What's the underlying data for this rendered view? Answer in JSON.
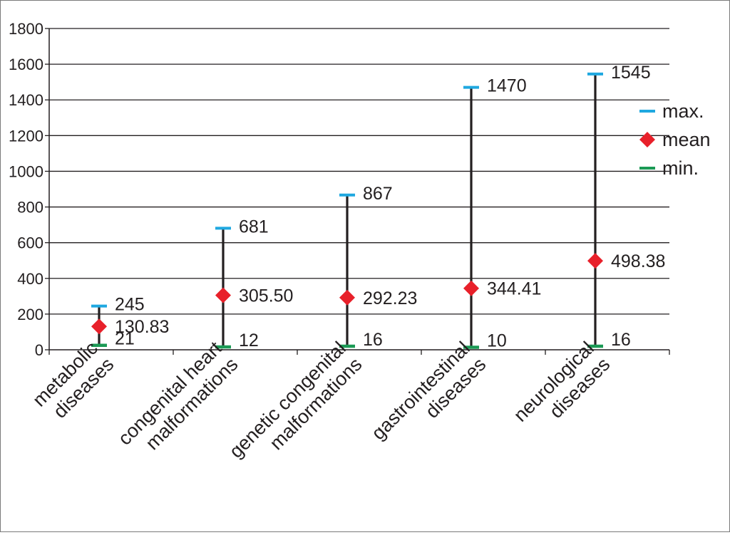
{
  "chart_data": {
    "type": "range-dot",
    "categories": [
      [
        "metabolic",
        "diseases"
      ],
      [
        "congenital heart",
        "malformations"
      ],
      [
        "genetic congenital",
        "malformations"
      ],
      [
        "gastrointestinal",
        "diseases"
      ],
      [
        "neurological",
        "diseases"
      ]
    ],
    "series": [
      {
        "name": "max.",
        "values": [
          245,
          681,
          867,
          1470,
          1545
        ],
        "color": "#1fa8e0",
        "marker": "dash"
      },
      {
        "name": "mean",
        "values": [
          130.83,
          305.5,
          292.23,
          344.41,
          498.38
        ],
        "labels": [
          "130.83",
          "305.50",
          "292.23",
          "344.41",
          "498.38"
        ],
        "color": "#e8202a",
        "marker": "diamond"
      },
      {
        "name": "min.",
        "values": [
          21,
          12,
          16,
          10,
          16
        ],
        "color": "#1b9a55",
        "marker": "dash"
      }
    ],
    "ylim": [
      0,
      1800
    ],
    "yticks": [
      0,
      200,
      400,
      600,
      800,
      1000,
      1200,
      1400,
      1600,
      1800
    ],
    "grid": true,
    "legend_position": "right"
  }
}
